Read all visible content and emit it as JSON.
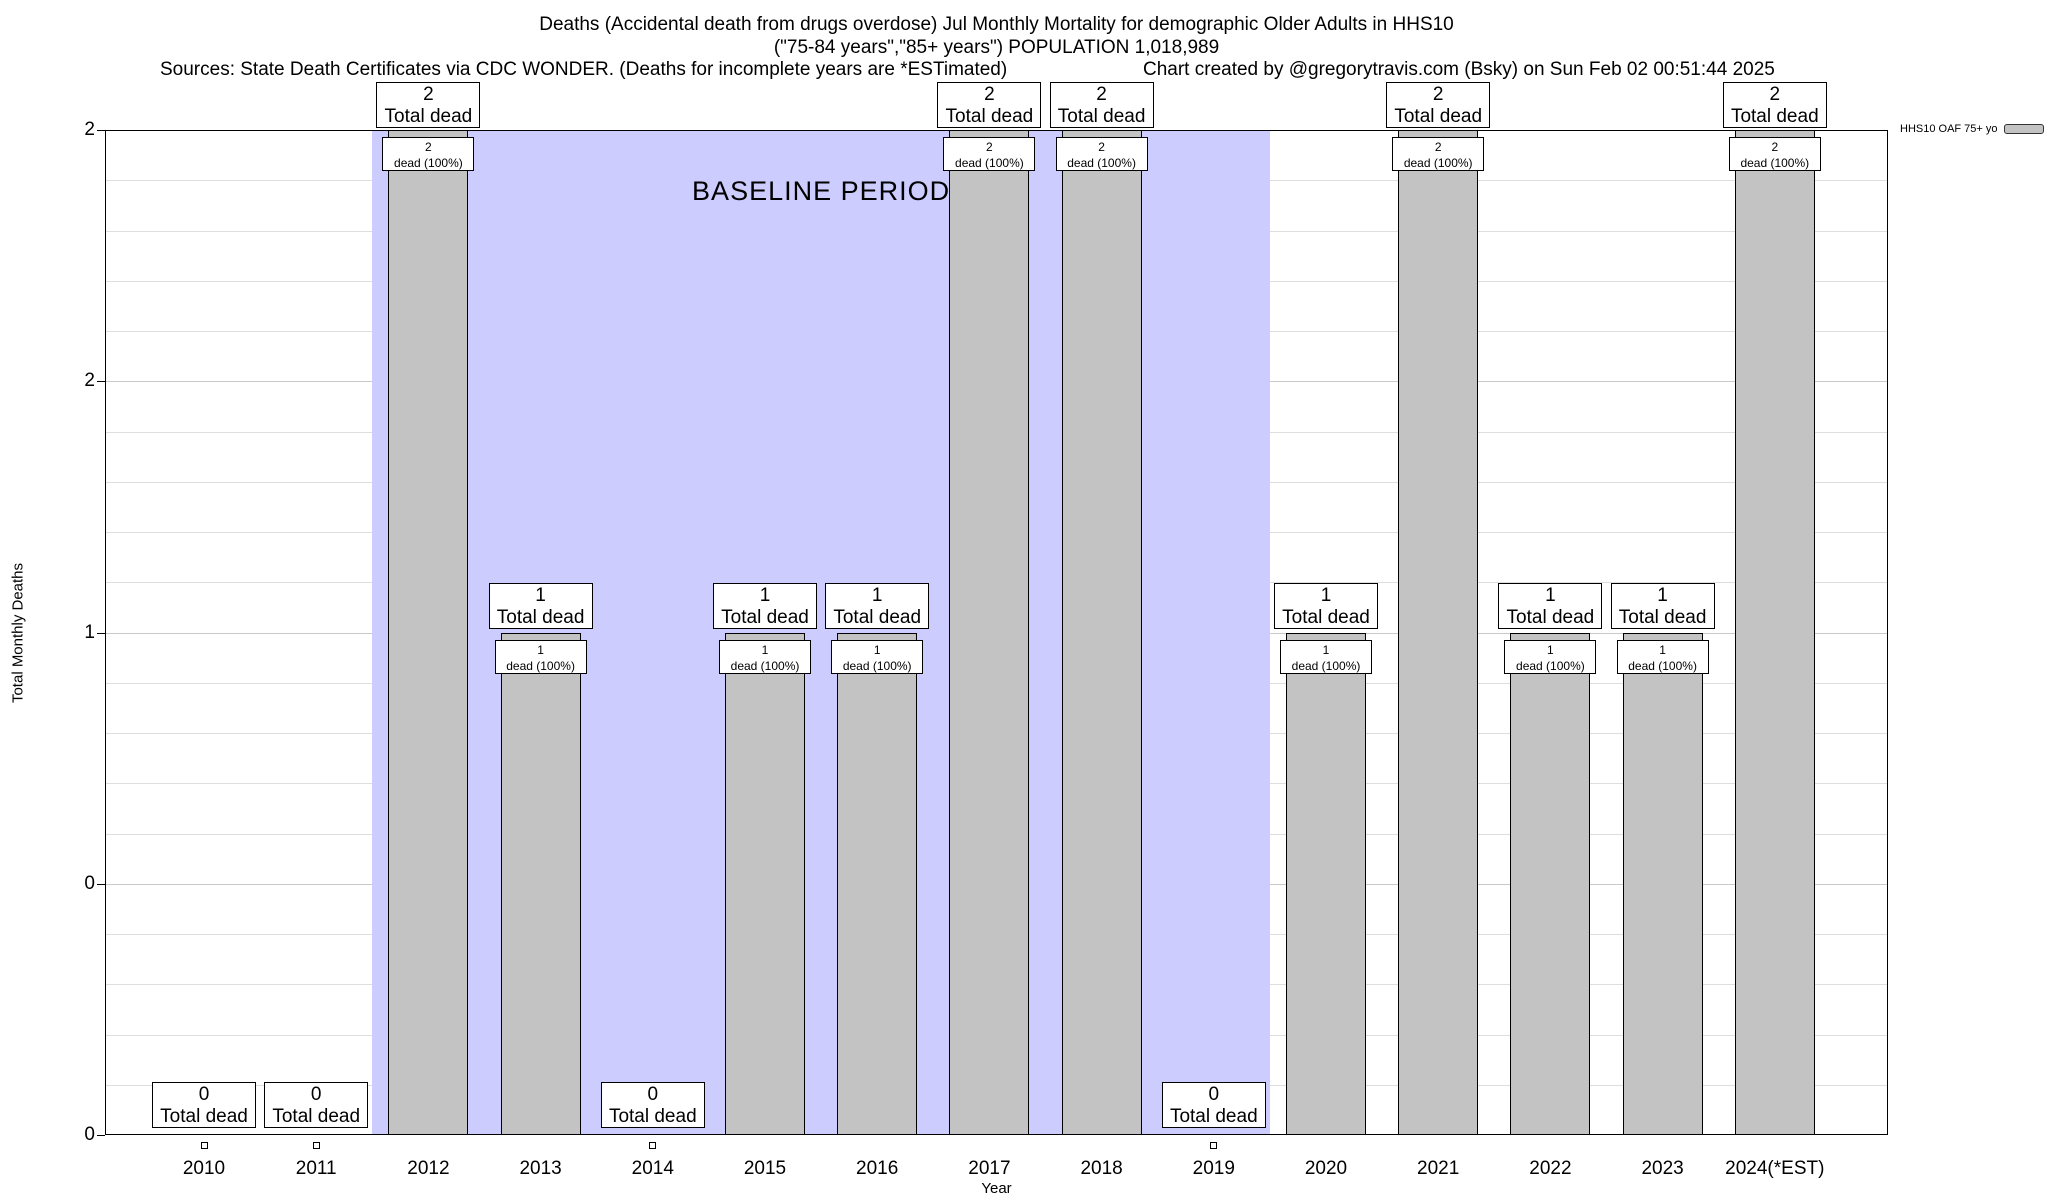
{
  "header": {
    "title_line1": "Deaths (Accidental death from drugs overdose) Jul Monthly Mortality for demographic Older Adults in HHS10",
    "title_line2": "(\"75-84 years\",\"85+ years\") POPULATION 1,018,989",
    "sources_note": "Sources: State Death Certificates via CDC WONDER. (Deaths for incomplete years are *ESTimated)",
    "credit_note": "Chart created by @gregorytravis.com (Bsky) on Sun Feb 02 00:51:44 2025"
  },
  "chart_data": {
    "type": "bar",
    "title": "Deaths (Accidental death from drugs overdose) Jul Monthly Mortality for demographic Older Adults in HHS10",
    "subtitle": "(\"75-84 years\",\"85+ years\") POPULATION 1,018,989",
    "xlabel": "Year",
    "ylabel": "Total Monthly Deaths",
    "ylim": [
      0,
      2
    ],
    "grid": {
      "show": true,
      "step": 0.1
    },
    "yticks": [
      {
        "value": 0,
        "label": "0"
      },
      {
        "value": 0.5,
        "label": "0"
      },
      {
        "value": 1,
        "label": "1"
      },
      {
        "value": 1.5,
        "label": "2"
      },
      {
        "value": 2,
        "label": "2"
      }
    ],
    "categories": [
      "2010",
      "2011",
      "2012",
      "2013",
      "2014",
      "2015",
      "2016",
      "2017",
      "2018",
      "2019",
      "2020",
      "2021",
      "2022",
      "2023",
      "2024(*EST)"
    ],
    "values": [
      0,
      0,
      2,
      1,
      0,
      1,
      1,
      2,
      2,
      0,
      1,
      2,
      1,
      1,
      2
    ],
    "bar_color": "#c3c3c3",
    "bar_border": "#000000",
    "bars": [
      {
        "year": "2010",
        "value": 0,
        "outer_line1": "0",
        "outer_line2": "Total dead",
        "inner_line1": null,
        "inner_line2": null
      },
      {
        "year": "2011",
        "value": 0,
        "outer_line1": "0",
        "outer_line2": "Total dead",
        "inner_line1": null,
        "inner_line2": null
      },
      {
        "year": "2012",
        "value": 2,
        "outer_line1": "2",
        "outer_line2": "Total dead",
        "inner_line1": "2",
        "inner_line2": "dead (100%)"
      },
      {
        "year": "2013",
        "value": 1,
        "outer_line1": "1",
        "outer_line2": "Total dead",
        "inner_line1": "1",
        "inner_line2": "dead (100%)"
      },
      {
        "year": "2014",
        "value": 0,
        "outer_line1": "0",
        "outer_line2": "Total dead",
        "inner_line1": null,
        "inner_line2": null
      },
      {
        "year": "2015",
        "value": 1,
        "outer_line1": "1",
        "outer_line2": "Total dead",
        "inner_line1": "1",
        "inner_line2": "dead (100%)"
      },
      {
        "year": "2016",
        "value": 1,
        "outer_line1": "1",
        "outer_line2": "Total dead",
        "inner_line1": "1",
        "inner_line2": "dead (100%)"
      },
      {
        "year": "2017",
        "value": 2,
        "outer_line1": "2",
        "outer_line2": "Total dead",
        "inner_line1": "2",
        "inner_line2": "dead (100%)"
      },
      {
        "year": "2018",
        "value": 2,
        "outer_line1": "2",
        "outer_line2": "Total dead",
        "inner_line1": "2",
        "inner_line2": "dead (100%)"
      },
      {
        "year": "2019",
        "value": 0,
        "outer_line1": "0",
        "outer_line2": "Total dead",
        "inner_line1": null,
        "inner_line2": null
      },
      {
        "year": "2020",
        "value": 1,
        "outer_line1": "1",
        "outer_line2": "Total dead",
        "inner_line1": "1",
        "inner_line2": "dead (100%)"
      },
      {
        "year": "2021",
        "value": 2,
        "outer_line1": "2",
        "outer_line2": "Total dead",
        "inner_line1": "2",
        "inner_line2": "dead (100%)"
      },
      {
        "year": "2022",
        "value": 1,
        "outer_line1": "1",
        "outer_line2": "Total dead",
        "inner_line1": "1",
        "inner_line2": "dead (100%)"
      },
      {
        "year": "2023",
        "value": 1,
        "outer_line1": "1",
        "outer_line2": "Total dead",
        "inner_line1": "1",
        "inner_line2": "dead (100%)"
      },
      {
        "year": "2024(*EST)",
        "value": 2,
        "outer_line1": "2",
        "outer_line2": "Total dead",
        "inner_line1": "2",
        "inner_line2": "dead (100%)"
      }
    ],
    "baseline_band": {
      "label": "BASELINE PERIOD",
      "from_category": "2012",
      "to_category": "2019",
      "color": "#ccccfe"
    },
    "legend": {
      "label": "HHS10 OAF 75+ yo",
      "swatch_color": "#c3c3c3",
      "position": "top-right"
    }
  }
}
